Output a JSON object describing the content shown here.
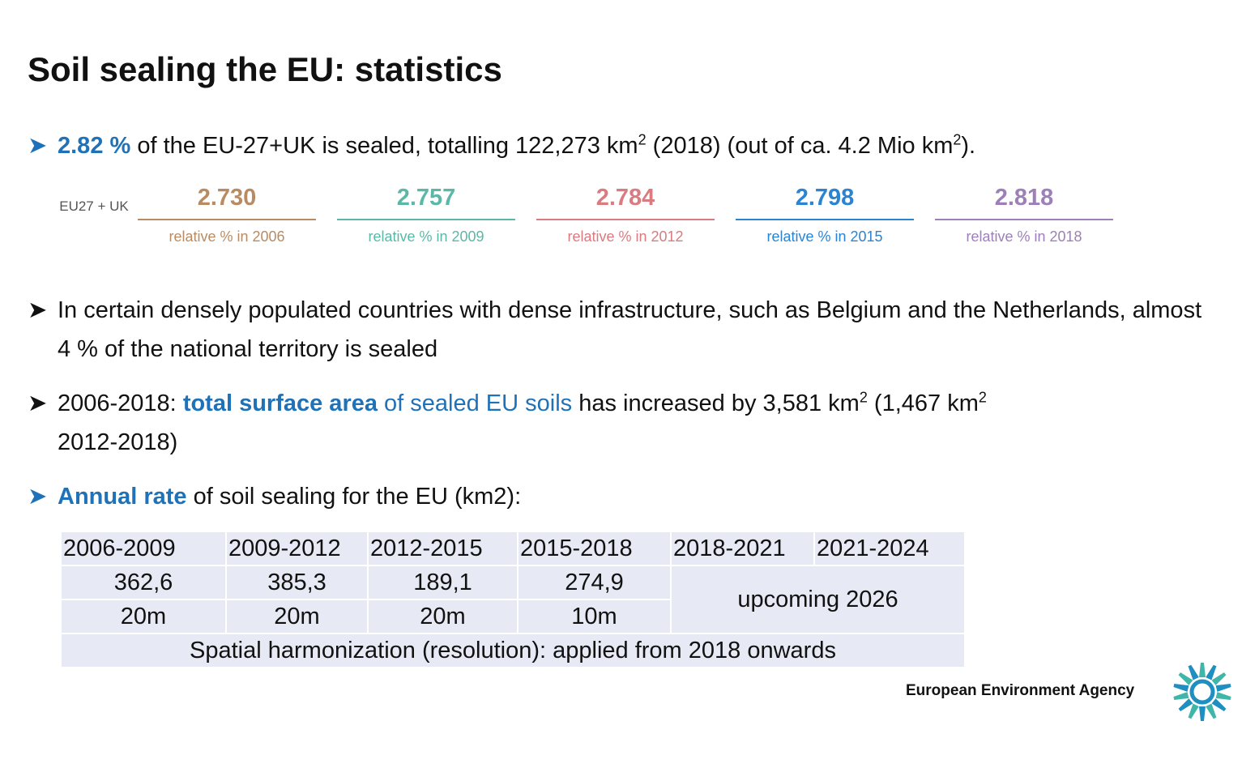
{
  "title": "Soil sealing the EU: statistics",
  "bullets": [
    {
      "parts": [
        "2.82 %",
        "of the EU-27+UK is sealed, totalling 122,273 km",
        "2",
        "(2018) (out of ca. 4.2 Mio km",
        "2",
        ")."
      ]
    },
    {
      "parts": [
        "In certain densely populated countries with dense infrastructure, such as Belgium and the Netherlands, almost 4 % of the national territory is sealed"
      ]
    },
    {
      "parts": [
        "2006-2018:",
        "total surface area",
        "of sealed EU soils",
        "has increased by 3,581 km",
        "2",
        "(1,467 km",
        "2",
        "2012-2018)"
      ]
    },
    {
      "parts": [
        "Annual rate",
        "of soil sealing for the EU (km2):"
      ]
    }
  ],
  "stats": {
    "row_label": "EU27 + UK",
    "items": [
      {
        "value": "2.730",
        "label": "relative % in 2006",
        "color": "#b98b63"
      },
      {
        "value": "2.757",
        "label": "relative % in 2009",
        "color": "#5cb8a6"
      },
      {
        "value": "2.784",
        "label": "relative % in 2012",
        "color": "#d97b80"
      },
      {
        "value": "2.798",
        "label": "relative % in 2015",
        "color": "#2a84d2"
      },
      {
        "value": "2.818",
        "label": "relative % in 2018",
        "color": "#9d80b8"
      }
    ]
  },
  "table": {
    "header": [
      "2006-2009",
      "2009-2012",
      "2012-2015",
      "2015-2018",
      "2018-2021",
      "2021-2024"
    ],
    "rows": [
      [
        "362,6",
        "385,3",
        "189,1",
        "274,9"
      ],
      [
        "20m",
        "20m",
        "20m",
        "10m"
      ]
    ],
    "merged": "upcoming 2026",
    "footer": "Spatial harmonization (resolution): applied from 2018 onwards"
  },
  "logo_text": "European Environment Agency"
}
